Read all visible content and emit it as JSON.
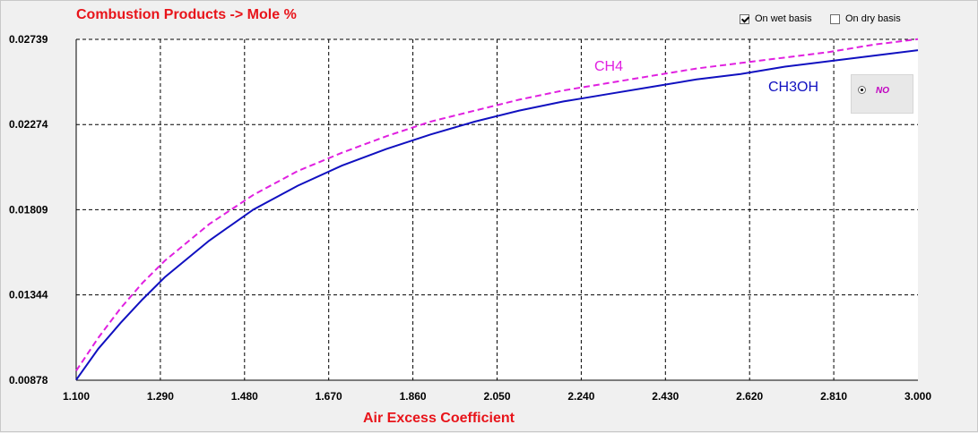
{
  "window": {
    "title": "Combustion Products -> Mole %",
    "wet_basis_label": "On wet basis",
    "wet_basis_checked": true,
    "dry_basis_label": "On dry basis",
    "dry_basis_checked": false,
    "species_option": "NO",
    "colors": {
      "title": "#e8141a",
      "ch4": "#e020e0",
      "ch3oh": "#1010c0",
      "grid": "#000000"
    }
  },
  "chart_data": {
    "type": "line",
    "title": "Combustion Products -> Mole %",
    "xlabel": "Air Excess Coefficient",
    "ylabel": "",
    "xlim": [
      1.1,
      3.0
    ],
    "ylim": [
      0.00878,
      0.02739
    ],
    "x_ticks": [
      "1.100",
      "1.290",
      "1.480",
      "1.670",
      "1.860",
      "2.050",
      "2.240",
      "2.430",
      "2.620",
      "2.810",
      "3.000"
    ],
    "y_ticks": [
      "0.00878",
      "0.01344",
      "0.01809",
      "0.02274",
      "0.02739"
    ],
    "grid": true,
    "series": [
      {
        "name": "CH4",
        "color": "#e020e0",
        "dash": true,
        "x": [
          1.1,
          1.15,
          1.2,
          1.25,
          1.3,
          1.4,
          1.5,
          1.6,
          1.7,
          1.8,
          1.9,
          2.0,
          2.1,
          2.2,
          2.3,
          2.4,
          2.5,
          2.6,
          2.7,
          2.8,
          2.9,
          3.0
        ],
        "y": [
          0.0093,
          0.0111,
          0.0127,
          0.0141,
          0.0153,
          0.0173,
          0.0189,
          0.0202,
          0.0212,
          0.0221,
          0.0229,
          0.0235,
          0.0241,
          0.0246,
          0.025,
          0.0254,
          0.0258,
          0.0261,
          0.0264,
          0.0267,
          0.0271,
          0.0274
        ]
      },
      {
        "name": "CH3OH",
        "color": "#1010c0",
        "dash": false,
        "x": [
          1.1,
          1.15,
          1.2,
          1.25,
          1.3,
          1.4,
          1.5,
          1.6,
          1.7,
          1.8,
          1.9,
          2.0,
          2.1,
          2.2,
          2.3,
          2.4,
          2.5,
          2.6,
          2.7,
          2.8,
          2.9,
          3.0
        ],
        "y": [
          0.0088,
          0.0105,
          0.0119,
          0.0132,
          0.0144,
          0.0164,
          0.0181,
          0.0194,
          0.0205,
          0.0214,
          0.0222,
          0.0229,
          0.0235,
          0.024,
          0.0244,
          0.0248,
          0.0252,
          0.0255,
          0.0259,
          0.0262,
          0.0265,
          0.0268
        ]
      }
    ]
  }
}
